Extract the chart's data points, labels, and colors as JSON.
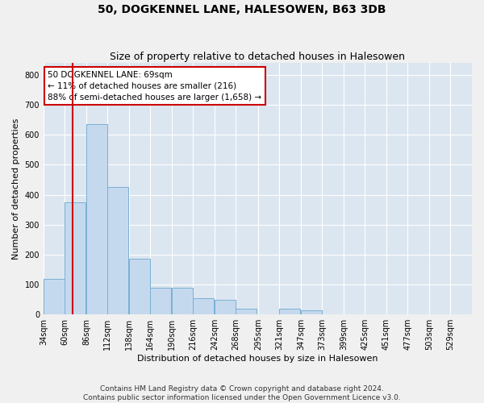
{
  "title": "50, DOGKENNEL LANE, HALESOWEN, B63 3DB",
  "subtitle": "Size of property relative to detached houses in Halesowen",
  "xlabel": "Distribution of detached houses by size in Halesowen",
  "ylabel": "Number of detached properties",
  "bar_color": "#c5d9ee",
  "bar_edge_color": "#7aafd4",
  "background_color": "#dce6f0",
  "grid_color": "#ffffff",
  "property_line_color": "#cc0000",
  "property_line_x": 69,
  "annotation_text": "50 DOGKENNEL LANE: 69sqm\n← 11% of detached houses are smaller (216)\n88% of semi-detached houses are larger (1,658) →",
  "bin_edges": [
    34,
    60,
    86,
    112,
    138,
    164,
    190,
    216,
    242,
    268,
    295,
    321,
    347,
    373,
    399,
    425,
    451,
    477,
    503,
    529,
    555
  ],
  "bar_heights": [
    120,
    375,
    635,
    425,
    185,
    90,
    90,
    55,
    50,
    20,
    0,
    20,
    15,
    0,
    0,
    0,
    0,
    0,
    0,
    0
  ],
  "ylim": [
    0,
    840
  ],
  "yticks": [
    0,
    100,
    200,
    300,
    400,
    500,
    600,
    700,
    800
  ],
  "footer_text": "Contains HM Land Registry data © Crown copyright and database right 2024.\nContains public sector information licensed under the Open Government Licence v3.0.",
  "title_fontsize": 10,
  "subtitle_fontsize": 9,
  "axis_label_fontsize": 8,
  "tick_fontsize": 7,
  "annotation_fontsize": 7.5,
  "footer_fontsize": 6.5
}
